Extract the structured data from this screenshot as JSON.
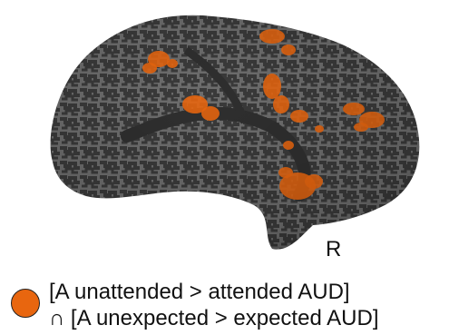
{
  "figure": {
    "hemisphere_label": "R",
    "colors": {
      "activation": "#e8660f",
      "cortex_dark": "#3f3f3f",
      "cortex_light": "#6e6e6e"
    }
  },
  "legend": {
    "line1": "[A unattended > attended AUD]",
    "line2": "∩ [A unexpected > expected AUD]"
  }
}
